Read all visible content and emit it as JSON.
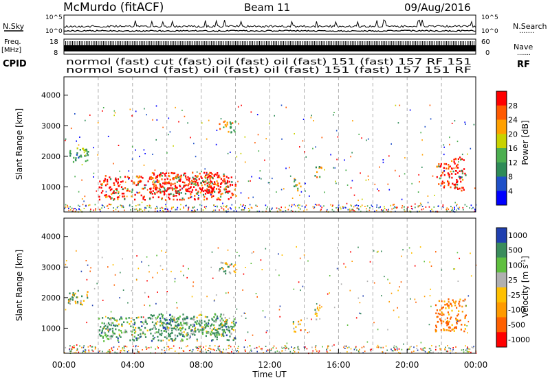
{
  "header": {
    "station": "McMurdo (fitACF)",
    "beam": "Beam 11",
    "date": "09/Aug/2016"
  },
  "panels": {
    "nsky_label": "N.Sky",
    "nsearch_label": "N.Search",
    "noise_ticks": [
      "10^5",
      "10^0"
    ],
    "noise_ticks_right": [
      "10^5",
      "10^0"
    ],
    "freq_label_line1": "Freq.",
    "freq_label_line2": "[MHz]",
    "freq_ticks": [
      "18",
      "8"
    ],
    "nave_label": "Nave",
    "nave_ticks": [
      "60",
      "0"
    ],
    "cpid_label": "CPID",
    "cpid_right": "RF",
    "cpid_row1": "normol (fast) cut (fast) oil (fast) oil (fast) 151 (fast) 157 RF 151",
    "cpid_row2": "normol sound (fast) oil (fast) oil (fast) 151 (fast) 157 151 RF",
    "dotted_marker": "......."
  },
  "time_axis": {
    "ticks": [
      "00:00",
      "04:00",
      "08:00",
      "12:00",
      "16:00",
      "20:00",
      "00:00"
    ],
    "label": "Time UT"
  },
  "chart_data": [
    {
      "type": "heatmap",
      "name": "power",
      "ylabel": "Slant Range [km]",
      "ylim": [
        180,
        4600
      ],
      "yticks": [
        1000,
        2000,
        3000,
        4000
      ],
      "xlim_hours": [
        0,
        24
      ],
      "colorbar_label": "Power [dB]",
      "colorbar_ticks": [
        "28",
        "24",
        "20",
        "16",
        "12",
        "8",
        "4"
      ],
      "colorbar_colors": [
        "#ff0000",
        "#ff5a00",
        "#ffa000",
        "#c8d200",
        "#4caf50",
        "#2e8b57",
        "#1f50c8",
        "#0000ff"
      ],
      "scatter_regions": [
        {
          "t": [
            2.0,
            10.0
          ],
          "r": [
            600,
            1400
          ],
          "level": "high"
        },
        {
          "t": [
            5.0,
            9.5
          ],
          "r": [
            800,
            1500
          ],
          "level": "high"
        },
        {
          "t": [
            0.2,
            1.4
          ],
          "r": [
            1800,
            2300
          ],
          "level": "low"
        },
        {
          "t": [
            9.0,
            10.0
          ],
          "r": [
            2800,
            3200
          ],
          "level": "mid"
        },
        {
          "t": [
            13.3,
            13.8
          ],
          "r": [
            900,
            1300
          ],
          "level": "mid"
        },
        {
          "t": [
            14.6,
            15.0
          ],
          "r": [
            1300,
            1700
          ],
          "level": "mid"
        },
        {
          "t": [
            21.6,
            22.4
          ],
          "r": [
            1000,
            1800
          ],
          "level": "high"
        },
        {
          "t": [
            22.4,
            23.4
          ],
          "r": [
            900,
            2000
          ],
          "level": "high"
        }
      ]
    },
    {
      "type": "heatmap",
      "name": "velocity",
      "ylabel": "Slant Range [km]",
      "ylim": [
        180,
        4600
      ],
      "yticks": [
        1000,
        2000,
        3000,
        4000
      ],
      "xlim_hours": [
        0,
        24
      ],
      "colorbar_label": "Velocity [m s^-1]",
      "colorbar_ticks": [
        "1000",
        "500",
        "100",
        "25",
        "-25",
        "-100",
        "-500",
        "-1000"
      ],
      "colorbar_colors": [
        "#2040b0",
        "#3a8c5c",
        "#5fbf3f",
        "#b0b0b0",
        "#ffc000",
        "#ff9a00",
        "#ff6000",
        "#ff0000"
      ],
      "scatter_regions": [
        {
          "t": [
            2.0,
            10.0
          ],
          "r": [
            600,
            1400
          ],
          "level": "low"
        },
        {
          "t": [
            5.0,
            9.5
          ],
          "r": [
            800,
            1500
          ],
          "level": "low"
        },
        {
          "t": [
            0.2,
            1.4
          ],
          "r": [
            1800,
            2300
          ],
          "level": "mid"
        },
        {
          "t": [
            9.0,
            10.0
          ],
          "r": [
            2800,
            3200
          ],
          "level": "mid"
        },
        {
          "t": [
            13.3,
            13.8
          ],
          "r": [
            900,
            1300
          ],
          "level": "mid"
        },
        {
          "t": [
            14.6,
            15.0
          ],
          "r": [
            1300,
            1700
          ],
          "level": "mid"
        },
        {
          "t": [
            21.6,
            23.4
          ],
          "r": [
            900,
            2000
          ],
          "level": "high"
        }
      ]
    }
  ]
}
